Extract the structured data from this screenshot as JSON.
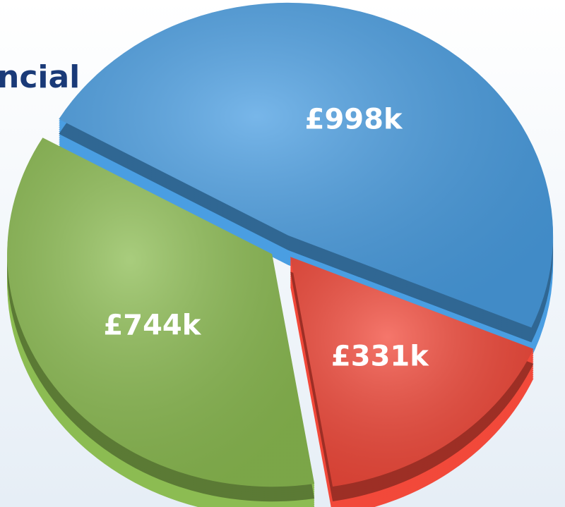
{
  "chart_data": {
    "type": "pie",
    "title": "ncial",
    "values": [
      998,
      331,
      744
    ],
    "value_labels": [
      "£998k",
      "£331k",
      "£744k"
    ],
    "colors": [
      "#4a9ee2",
      "#f2493a",
      "#8cbc52"
    ]
  }
}
